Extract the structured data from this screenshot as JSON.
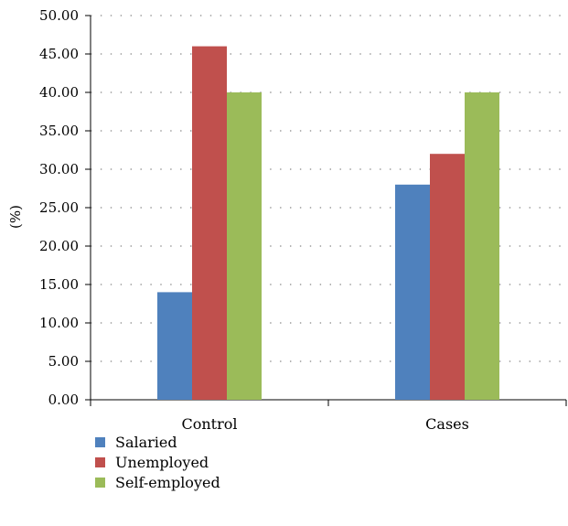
{
  "chart_data": {
    "type": "bar",
    "categories": [
      "Control",
      "Cases"
    ],
    "series": [
      {
        "name": "Salaried",
        "values": [
          14,
          28
        ],
        "color": "#4f81bd"
      },
      {
        "name": "Unemployed",
        "values": [
          46,
          32
        ],
        "color": "#c0504d"
      },
      {
        "name": "Self-employed",
        "values": [
          40,
          40
        ],
        "color": "#9bbb59"
      }
    ],
    "title": "",
    "xlabel": "",
    "ylabel": "(%)",
    "ylim": [
      0,
      50
    ],
    "yticks": [
      "0.00",
      "5.00",
      "10.00",
      "15.00",
      "20.00",
      "25.00",
      "30.00",
      "35.00",
      "40.00",
      "45.00",
      "50.00"
    ],
    "grid": true,
    "legend": "bottom-left"
  }
}
